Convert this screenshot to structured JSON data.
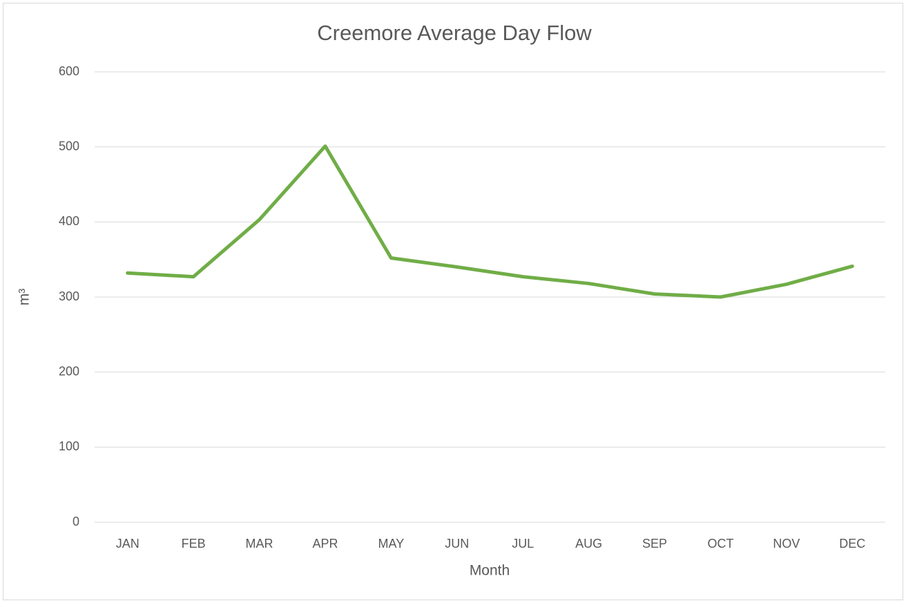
{
  "chart_data": {
    "type": "line",
    "title": "Creemore Average Day Flow",
    "x_label": "Month",
    "y_label": "m³",
    "categories": [
      "JAN",
      "FEB",
      "MAR",
      "APR",
      "MAY",
      "JUN",
      "JUL",
      "AUG",
      "SEP",
      "OCT",
      "NOV",
      "DEC"
    ],
    "values": [
      332,
      327,
      403,
      501,
      352,
      340,
      327,
      318,
      304,
      300,
      317,
      341
    ],
    "color": "#70ad47",
    "ylim": [
      0,
      600
    ],
    "yticks": [
      0,
      100,
      200,
      300,
      400,
      500,
      600
    ],
    "grid": true
  }
}
